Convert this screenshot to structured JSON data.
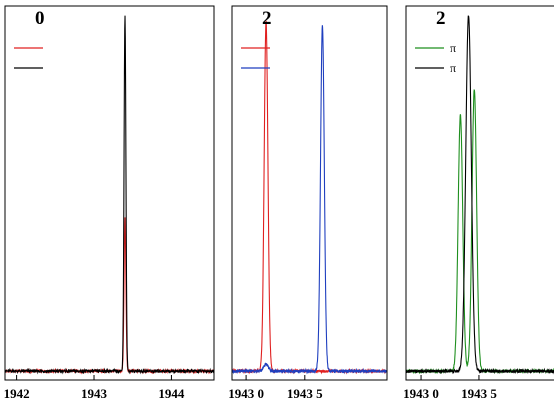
{
  "chart_data": [
    {
      "type": "line",
      "panel_label": "0",
      "xlim": [
        1941.85,
        1944.55
      ],
      "ylim": [
        -0.02,
        1.03
      ],
      "xticks": [
        1942,
        1943,
        1944
      ],
      "xtick_labels": [
        "1942",
        "1943",
        "1944"
      ],
      "legend_position": "top-left",
      "series": [
        {
          "label": "",
          "color": "#e02020",
          "peaks": [
            {
              "x": 1943.4,
              "height": 0.43,
              "width": 0.012
            }
          ],
          "baseline": 0.005
        },
        {
          "label": "",
          "color": "#000000",
          "peaks": [
            {
              "x": 1943.4,
              "height": 1.0,
              "width": 0.012
            }
          ],
          "baseline": 0.005
        }
      ]
    },
    {
      "type": "line",
      "panel_label": "2",
      "xlim": [
        1942.88,
        1944.2
      ],
      "ylim": [
        -0.02,
        1.03
      ],
      "xticks": [
        1943.0,
        1943.5
      ],
      "xtick_labels": [
        "1943 0",
        "1943 5"
      ],
      "legend_position": "top-left",
      "series": [
        {
          "label": "",
          "color": "#e02020",
          "peaks": [
            {
              "x": 1943.17,
              "height": 0.98,
              "width": 0.016
            }
          ],
          "baseline": 0.005
        },
        {
          "label": "",
          "color": "#1f3fbf",
          "peaks": [
            {
              "x": 1943.17,
              "height": 0.02,
              "width": 0.02
            },
            {
              "x": 1943.65,
              "height": 0.97,
              "width": 0.016
            }
          ],
          "baseline": 0.005
        }
      ]
    },
    {
      "type": "line",
      "panel_label": "2",
      "xlim": [
        1942.87,
        1944.2
      ],
      "ylim": [
        -0.02,
        1.03
      ],
      "xticks": [
        1943.0,
        1943.5
      ],
      "xtick_labels": [
        "1943 0",
        "1943 5"
      ],
      "legend_position": "top-left",
      "series": [
        {
          "label": "π",
          "color": "#1f8f1f",
          "peaks": [
            {
              "x": 1943.34,
              "height": 0.72,
              "width": 0.02
            },
            {
              "x": 1943.46,
              "height": 0.79,
              "width": 0.02
            }
          ],
          "baseline": 0.005
        },
        {
          "label": "π",
          "color": "#000000",
          "peaks": [
            {
              "x": 1943.41,
              "height": 1.0,
              "width": 0.024
            }
          ],
          "baseline": 0.005
        }
      ]
    }
  ]
}
